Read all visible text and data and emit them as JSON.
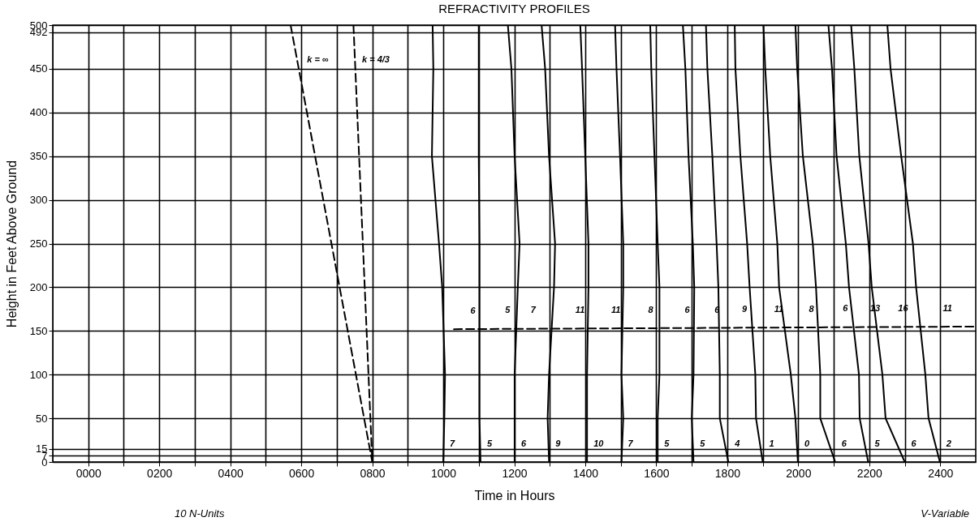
{
  "chart_data": {
    "type": "line",
    "title": "REFRACTIVITY PROFILES",
    "xlabel": "Time in Hours",
    "ylabel": "Height in Feet Above Ground",
    "xlim": [
      -100,
      2500
    ],
    "xticks": [
      {
        "value": 0,
        "label": "0000"
      },
      {
        "value": 100,
        "label": null
      },
      {
        "value": 200,
        "label": "0200"
      },
      {
        "value": 300,
        "label": null
      },
      {
        "value": 400,
        "label": "0400"
      },
      {
        "value": 500,
        "label": null
      },
      {
        "value": 600,
        "label": "0600"
      },
      {
        "value": 700,
        "label": null
      },
      {
        "value": 800,
        "label": "0800"
      },
      {
        "value": 900,
        "label": null
      },
      {
        "value": 1000,
        "label": "1000"
      },
      {
        "value": 1100,
        "label": null
      },
      {
        "value": 1200,
        "label": "1200"
      },
      {
        "value": 1300,
        "label": null
      },
      {
        "value": 1400,
        "label": "1400"
      },
      {
        "value": 1500,
        "label": null
      },
      {
        "value": 1600,
        "label": "1600"
      },
      {
        "value": 1700,
        "label": null
      },
      {
        "value": 1800,
        "label": "1800"
      },
      {
        "value": 1900,
        "label": null
      },
      {
        "value": 2000,
        "label": "2000"
      },
      {
        "value": 2100,
        "label": null
      },
      {
        "value": 2200,
        "label": "2200"
      },
      {
        "value": 2300,
        "label": null
      },
      {
        "value": 2400,
        "label": "2400"
      }
    ],
    "ylim": [
      0,
      500
    ],
    "yticks": [
      0,
      7,
      15,
      50,
      100,
      150,
      200,
      250,
      300,
      350,
      400,
      450,
      492,
      500
    ],
    "grid": true,
    "series": [
      {
        "color": "#000000",
        "line_style": "dashed",
        "x": [
          570,
          800
        ],
        "values": [
          500,
          0
        ]
      },
      {
        "color": "#000000",
        "line_style": "dashed",
        "x": [
          747,
          800
        ],
        "values": [
          500,
          0
        ]
      },
      {
        "color": "#000000",
        "line_style": "dashed",
        "x": [
          1030,
          2500
        ],
        "values": [
          152,
          155
        ]
      },
      {
        "color": "#000000",
        "x": [
          970,
          972,
          968,
          988,
          997,
          1005,
          1003,
          1000
        ],
        "values": [
          500,
          450,
          350,
          250,
          200,
          100,
          50,
          0
        ]
      },
      {
        "color": "#000000",
        "x": [
          1100,
          1100,
          1100,
          1102,
          1102,
          1102,
          1102,
          1105
        ],
        "values": [
          500,
          450,
          350,
          250,
          200,
          100,
          50,
          0
        ]
      },
      {
        "color": "#000000",
        "x": [
          1182,
          1192,
          1201,
          1215,
          1210,
          1201,
          1201,
          1201
        ],
        "values": [
          500,
          450,
          350,
          250,
          200,
          100,
          50,
          0
        ]
      },
      {
        "color": "#000000",
        "x": [
          1277,
          1287,
          1298,
          1315,
          1312,
          1298,
          1294,
          1298
        ],
        "values": [
          500,
          450,
          350,
          250,
          200,
          100,
          50,
          0
        ]
      },
      {
        "color": "#000000",
        "x": [
          1386,
          1391,
          1400,
          1409,
          1409,
          1405,
          1405,
          1405
        ],
        "values": [
          500,
          450,
          350,
          250,
          200,
          100,
          50,
          0
        ]
      },
      {
        "color": "#000000",
        "x": [
          1484,
          1488,
          1498,
          1507,
          1507,
          1502,
          1507,
          1502
        ],
        "values": [
          500,
          450,
          350,
          250,
          200,
          100,
          50,
          0
        ]
      },
      {
        "color": "#000000",
        "x": [
          1583,
          1586,
          1595,
          1604,
          1609,
          1609,
          1604,
          1604
        ],
        "values": [
          500,
          450,
          350,
          250,
          200,
          100,
          50,
          0
        ]
      },
      {
        "color": "#000000",
        "x": [
          1675,
          1682,
          1691,
          1703,
          1707,
          1705,
          1700,
          1705
        ],
        "values": [
          500,
          450,
          350,
          250,
          200,
          100,
          50,
          0
        ]
      },
      {
        "color": "#000000",
        "x": [
          1740,
          1744,
          1758,
          1770,
          1775,
          1779,
          1779,
          1803
        ],
        "values": [
          500,
          450,
          350,
          250,
          200,
          100,
          50,
          0
        ]
      },
      {
        "color": "#000000",
        "x": [
          1821,
          1823,
          1837,
          1856,
          1863,
          1879,
          1881,
          1900
        ],
        "values": [
          500,
          450,
          350,
          250,
          200,
          100,
          50,
          0
        ]
      },
      {
        "color": "#000000",
        "x": [
          1902,
          1907,
          1921,
          1941,
          1946,
          1979,
          1992,
          1999
        ],
        "values": [
          500,
          450,
          350,
          250,
          200,
          100,
          50,
          0
        ]
      },
      {
        "color": "#000000",
        "x": [
          1992,
          1997,
          2013,
          2041,
          2050,
          2062,
          2062,
          2104
        ],
        "values": [
          500,
          450,
          350,
          250,
          200,
          100,
          50,
          0
        ]
      },
      {
        "color": "#000000",
        "x": [
          2085,
          2095,
          2108,
          2134,
          2143,
          2171,
          2173,
          2197
        ],
        "values": [
          500,
          450,
          350,
          250,
          200,
          100,
          50,
          0
        ]
      },
      {
        "color": "#000000",
        "x": [
          2149,
          2158,
          2172,
          2198,
          2207,
          2237,
          2246,
          2300
        ],
        "values": [
          500,
          450,
          350,
          250,
          200,
          100,
          50,
          0
        ]
      },
      {
        "color": "#000000",
        "x": [
          2251,
          2260,
          2290,
          2323,
          2332,
          2358,
          2367,
          2399
        ],
        "values": [
          500,
          450,
          350,
          250,
          200,
          100,
          50,
          0
        ]
      }
    ],
    "annotations": [
      {
        "text": "k = ∞",
        "x": 598,
        "y": 440
      },
      {
        "text": "k = 4/3",
        "x": 753,
        "y": 440
      },
      {
        "text": "6",
        "x": 1058,
        "y": 152
      },
      {
        "text": "5",
        "x": 1156,
        "y": 153
      },
      {
        "text": "7",
        "x": 1228,
        "y": 153
      },
      {
        "text": "11",
        "x": 1354,
        "y": 153
      },
      {
        "text": "11",
        "x": 1455,
        "y": 153
      },
      {
        "text": "8",
        "x": 1559,
        "y": 153
      },
      {
        "text": "6",
        "x": 1662,
        "y": 153
      },
      {
        "text": "6",
        "x": 1746,
        "y": 153
      },
      {
        "text": "9",
        "x": 1823,
        "y": 154
      },
      {
        "text": "11",
        "x": 1914,
        "y": 154
      },
      {
        "text": "8",
        "x": 2012,
        "y": 154
      },
      {
        "text": "6",
        "x": 2107,
        "y": 155
      },
      {
        "text": "13",
        "x": 2184,
        "y": 155
      },
      {
        "text": "16",
        "x": 2263,
        "y": 155
      },
      {
        "text": "11",
        "x": 2389,
        "y": 155
      },
      {
        "text": "7",
        "x": 1000,
        "y": 0
      },
      {
        "text": "5",
        "x": 1105,
        "y": 0
      },
      {
        "text": "6",
        "x": 1201,
        "y": 0
      },
      {
        "text": "9",
        "x": 1298,
        "y": 0
      },
      {
        "text": "10",
        "x": 1405,
        "y": 0
      },
      {
        "text": "7",
        "x": 1502,
        "y": 0
      },
      {
        "text": "5",
        "x": 1604,
        "y": 0
      },
      {
        "text": "5",
        "x": 1705,
        "y": 0
      },
      {
        "text": "4",
        "x": 1803,
        "y": 0
      },
      {
        "text": "1",
        "x": 1900,
        "y": 0
      },
      {
        "text": "0",
        "x": 1999,
        "y": 0
      },
      {
        "text": "6",
        "x": 2104,
        "y": 0
      },
      {
        "text": "5",
        "x": 2197,
        "y": 0
      },
      {
        "text": "6",
        "x": 2300,
        "y": 0
      },
      {
        "text": "2",
        "x": 2399,
        "y": 0
      },
      "10 N-Units",
      "V-Variable"
    ]
  }
}
